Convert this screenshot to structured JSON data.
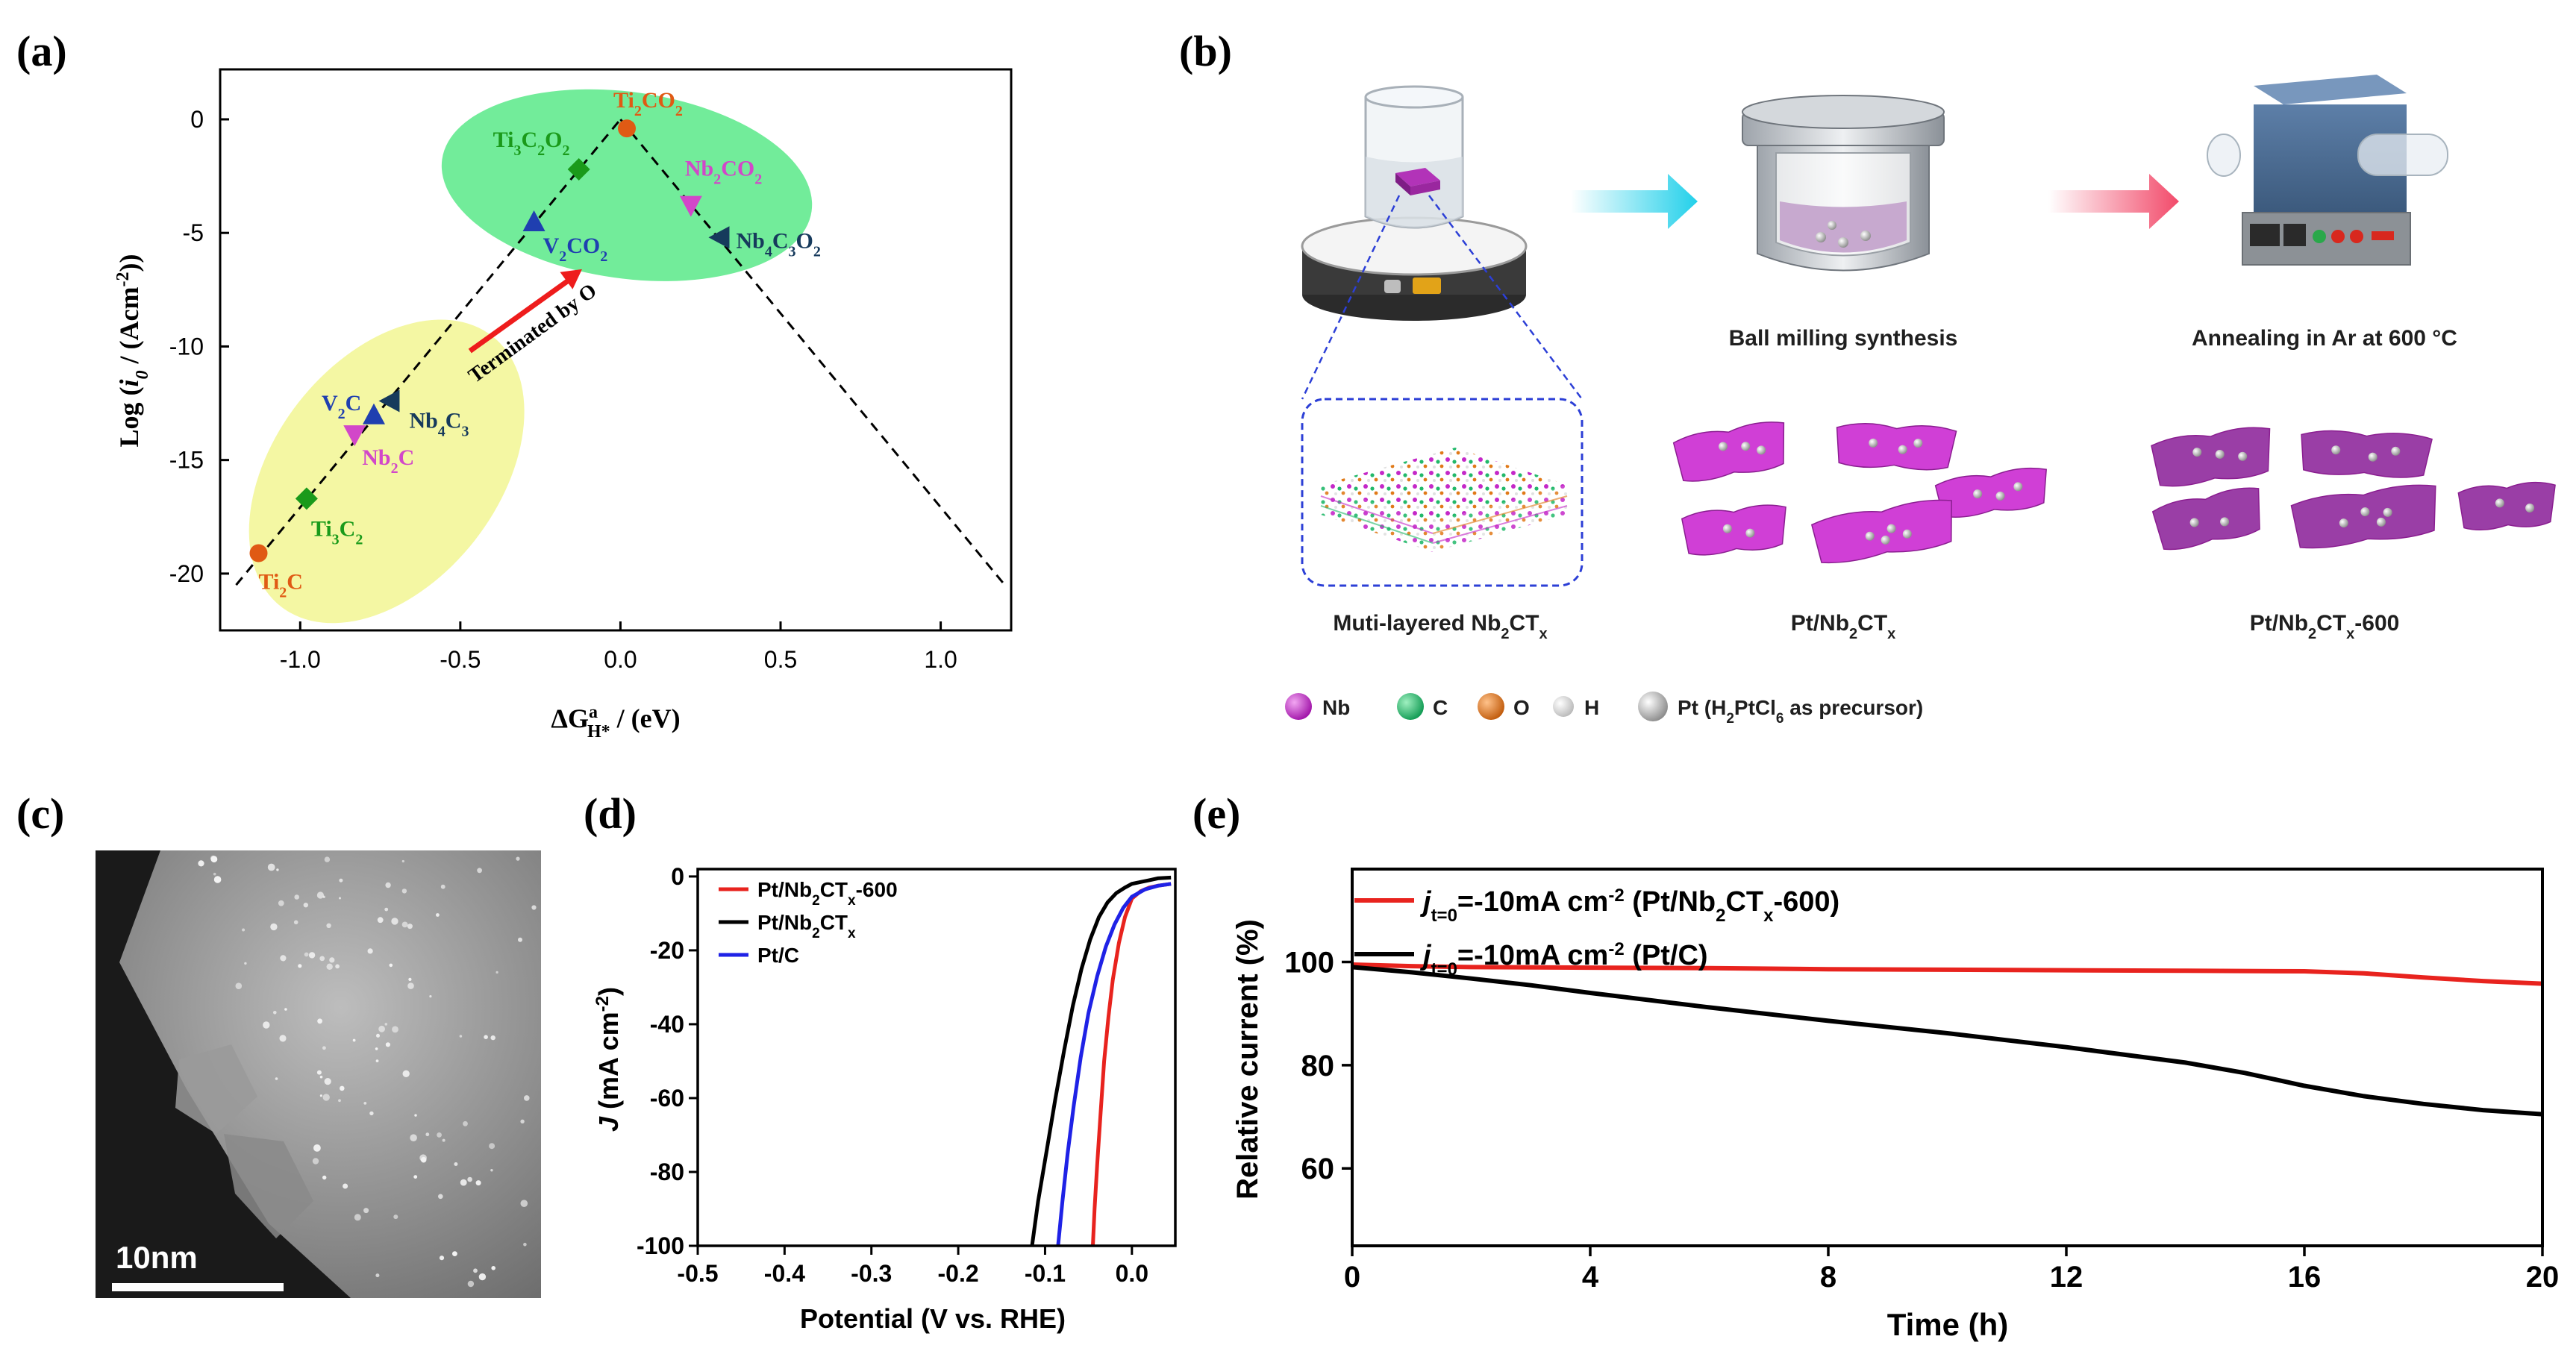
{
  "panel_labels": {
    "a": "(a)",
    "b": "(b)",
    "c": "(c)",
    "d": "(d)",
    "e": "(e)"
  },
  "colors": {
    "yellow": "#f4f7a3",
    "green": "#72ec9a",
    "red": "#e8231e",
    "black": "#000000",
    "blue": "#1f22e6",
    "ti": "#1a9a1a",
    "v": "#1f3fb0",
    "nb": "#d247c9",
    "nb_dark": "#163a5c",
    "tio": "#e05a14",
    "arrow_red": "#ee1c1c",
    "magenta": "#b233b8",
    "cyan": "#22d0ea",
    "pink_arrow": "#f24a6a"
  },
  "chart_data": [
    {
      "id": "a",
      "type": "scatter",
      "xlabel_main": "ΔG",
      "xlabel_sup": "a",
      "xlabel_sub": "H*",
      "xlabel_unit": " / (eV)",
      "ylabel_pre": "Log (",
      "ylabel_var": "i",
      "ylabel_sub": "0",
      "ylabel_post": " / (Acm",
      "ylabel_exp": "-2",
      "ylabel_close": "))",
      "xlim": [
        -1.25,
        1.22
      ],
      "ylim": [
        -22.5,
        2.2
      ],
      "xticks": [
        -1.0,
        -0.5,
        0.0,
        0.5,
        1.0
      ],
      "xtick_labels": [
        "-1.0",
        "-0.5",
        "0.0",
        "0.5",
        "1.0"
      ],
      "yticks": [
        0,
        -5,
        -10,
        -15,
        -20
      ],
      "ytick_labels": [
        "0",
        "-5",
        "-10",
        "-15",
        "-20"
      ],
      "volcano_peak": [
        0.0,
        0.0
      ],
      "volcano_left_end": [
        -1.2,
        -20.5
      ],
      "volcano_right_end": [
        1.2,
        -20.5
      ],
      "arrow_annotation": "Terminated by O",
      "points": [
        {
          "name": "Ti2CO2",
          "label": "Ti",
          "sub1": "2",
          "mid": "CO",
          "sub2": "2",
          "x": 0.02,
          "y": -0.4,
          "marker": "circle",
          "color": "#e05a14"
        },
        {
          "name": "Ti3C2O2",
          "label": "Ti",
          "sub1": "3",
          "mid": "C",
          "sub2": "2",
          "mid2": "O",
          "sub3": "2",
          "x": -0.13,
          "y": -2.2,
          "marker": "diamond",
          "color": "#1a9a1a"
        },
        {
          "name": "Nb2CO2",
          "label": "Nb",
          "sub1": "2",
          "mid": "CO",
          "sub2": "2",
          "x": 0.22,
          "y": -3.8,
          "marker": "tri-down",
          "color": "#d247c9"
        },
        {
          "name": "V2CO2",
          "label": "V",
          "sub1": "2",
          "mid": "CO",
          "sub2": "2",
          "x": -0.27,
          "y": -4.5,
          "marker": "tri-up",
          "color": "#1f3fb0"
        },
        {
          "name": "Nb4C3O2",
          "label": "Nb",
          "sub1": "4",
          "mid": "C",
          "sub2": "3",
          "mid2": "O",
          "sub3": "2",
          "x": 0.31,
          "y": -5.2,
          "marker": "tri-left",
          "color": "#163a5c"
        },
        {
          "name": "V2C",
          "label": "V",
          "sub1": "2",
          "mid": "C",
          "x": -0.77,
          "y": -13.0,
          "marker": "tri-up",
          "color": "#1f3fb0"
        },
        {
          "name": "Nb4C3",
          "label": "Nb",
          "sub1": "4",
          "mid": "C",
          "sub2": "3",
          "x": -0.72,
          "y": -12.4,
          "marker": "tri-left",
          "color": "#163a5c"
        },
        {
          "name": "Nb2C",
          "label": "Nb",
          "sub1": "2",
          "mid": "C",
          "x": -0.83,
          "y": -13.9,
          "marker": "tri-down",
          "color": "#d247c9"
        },
        {
          "name": "Ti3C2",
          "label": "Ti",
          "sub1": "3",
          "mid": "C",
          "sub2": "2",
          "x": -0.98,
          "y": -16.7,
          "marker": "diamond",
          "color": "#1a9a1a"
        },
        {
          "name": "Ti2C",
          "label": "Ti",
          "sub1": "2",
          "mid": "C",
          "x": -1.13,
          "y": -19.1,
          "marker": "circle",
          "color": "#e05a14"
        }
      ]
    },
    {
      "id": "d",
      "type": "line",
      "xlabel": "Potential (V vs. RHE)",
      "ylabel_var": "J",
      "ylabel_unit": " (mA cm",
      "ylabel_exp": "-2",
      "ylabel_close": ")",
      "xlim": [
        -0.5,
        0.05
      ],
      "ylim": [
        -100,
        2
      ],
      "xticks": [
        -0.5,
        -0.4,
        -0.3,
        -0.2,
        -0.1,
        0.0
      ],
      "xtick_labels": [
        "-0.5",
        "-0.4",
        "-0.3",
        "-0.2",
        "-0.1",
        "0.0"
      ],
      "yticks": [
        0,
        -20,
        -40,
        -60,
        -80,
        -100
      ],
      "ytick_labels": [
        "0",
        "-20",
        "-40",
        "-60",
        "-80",
        "-100"
      ],
      "series": [
        {
          "name": "Pt/Nb2CTx-600",
          "legend_pre": "Pt/Nb",
          "legend_sub": "2",
          "legend_mid": "CT",
          "legend_sub2": "x",
          "legend_post": "-600",
          "color": "#e8231e",
          "x": [
            -0.045,
            -0.043,
            -0.04,
            -0.036,
            -0.032,
            -0.027,
            -0.022,
            -0.015,
            -0.008,
            0.0,
            0.01,
            0.02,
            0.03,
            0.045
          ],
          "y": [
            -100,
            -90,
            -78,
            -64,
            -50,
            -38,
            -28,
            -18,
            -11,
            -6,
            -4,
            -3,
            -2.5,
            -2
          ]
        },
        {
          "name": "Pt/Nb2CTx",
          "legend_pre": "Pt/Nb",
          "legend_sub": "2",
          "legend_mid": "CT",
          "legend_sub2": "x",
          "legend_post": "",
          "color": "#000000",
          "x": [
            -0.115,
            -0.108,
            -0.098,
            -0.088,
            -0.078,
            -0.068,
            -0.058,
            -0.048,
            -0.038,
            -0.028,
            -0.018,
            -0.008,
            0.0,
            0.01,
            0.02,
            0.03,
            0.045
          ],
          "y": [
            -100,
            -88,
            -74,
            -60,
            -47,
            -35,
            -25,
            -17,
            -11,
            -7,
            -4.5,
            -3,
            -2,
            -1.5,
            -1,
            -0.5,
            -0.3
          ]
        },
        {
          "name": "Pt/C",
          "legend_pre": "Pt/C",
          "color": "#1f22e6",
          "x": [
            -0.085,
            -0.08,
            -0.074,
            -0.067,
            -0.059,
            -0.05,
            -0.04,
            -0.03,
            -0.02,
            -0.01,
            0.0,
            0.015,
            0.03,
            0.045
          ],
          "y": [
            -100,
            -88,
            -75,
            -62,
            -49,
            -37,
            -27,
            -19,
            -13,
            -8.5,
            -5.5,
            -3.5,
            -2.5,
            -2
          ]
        }
      ]
    },
    {
      "id": "e",
      "type": "line",
      "xlabel": "Time (h)",
      "ylabel": "Relative current (%)",
      "xlim": [
        0,
        20
      ],
      "ylim": [
        45,
        118
      ],
      "xticks": [
        0,
        4,
        8,
        12,
        16,
        20
      ],
      "xtick_labels": [
        "0",
        "4",
        "8",
        "12",
        "16",
        "20"
      ],
      "yticks": [
        60,
        80,
        100
      ],
      "ytick_labels": [
        "60",
        "80",
        "100"
      ],
      "series": [
        {
          "name": "j_t=0=-10mA cm-2 (Pt/Nb2CTx-600)",
          "color": "#e8231e",
          "leg_j": "j",
          "leg_sub": "t=0",
          "leg_mid": "=-10mA cm",
          "leg_exp": "-2",
          "leg_post1": " (Pt/Nb",
          "leg_sub2": "2",
          "leg_post2": "CT",
          "leg_sub3": "x",
          "leg_post3": "-600)",
          "x": [
            0,
            1,
            2,
            4,
            6,
            8,
            10,
            12,
            14,
            16,
            17,
            18,
            19,
            20
          ],
          "y": [
            99.5,
            99.2,
            99,
            98.9,
            98.8,
            98.6,
            98.5,
            98.4,
            98.3,
            98.2,
            97.8,
            97,
            96.3,
            95.8
          ]
        },
        {
          "name": "j_t=0=-10mA cm-2 (Pt/C)",
          "color": "#000000",
          "leg_j": "j",
          "leg_sub": "t=0",
          "leg_mid": "=-10mA cm",
          "leg_exp": "-2",
          "leg_post1": " (Pt/C)",
          "x": [
            0,
            1,
            2,
            3,
            4,
            6,
            8,
            10,
            12,
            14,
            15,
            16,
            17,
            18,
            19,
            20
          ],
          "y": [
            99,
            98,
            96.8,
            95.5,
            94,
            91.2,
            88.6,
            86.2,
            83.5,
            80.5,
            78.5,
            76,
            74,
            72.5,
            71.3,
            70.5
          ]
        }
      ]
    }
  ],
  "panel_b": {
    "step1": "Ball milling synthesis",
    "step2": "Annealing in Ar at 600 °C",
    "lab_multi_pre": "Muti-layered Nb",
    "lab_multi_sub": "2",
    "lab_multi_mid": "CT",
    "lab_multi_sub2": "x",
    "lab_pt_pre": "Pt/Nb",
    "lab_pt_sub": "2",
    "lab_pt_mid": "CT",
    "lab_pt_sub2": "x",
    "lab_pt600_pre": "Pt/Nb",
    "lab_pt600_sub": "2",
    "lab_pt600_mid": "CT",
    "lab_pt600_sub2": "x",
    "lab_pt600_post": "-600",
    "legend": {
      "nb": "Nb",
      "c": "C",
      "o": "O",
      "h": "H",
      "pt_pre": "Pt (H",
      "pt_sub": "2",
      "pt_mid": "PtCl",
      "pt_sub2": "6",
      "pt_post": " as precursor)"
    }
  },
  "panel_c": {
    "scale": "10nm"
  }
}
